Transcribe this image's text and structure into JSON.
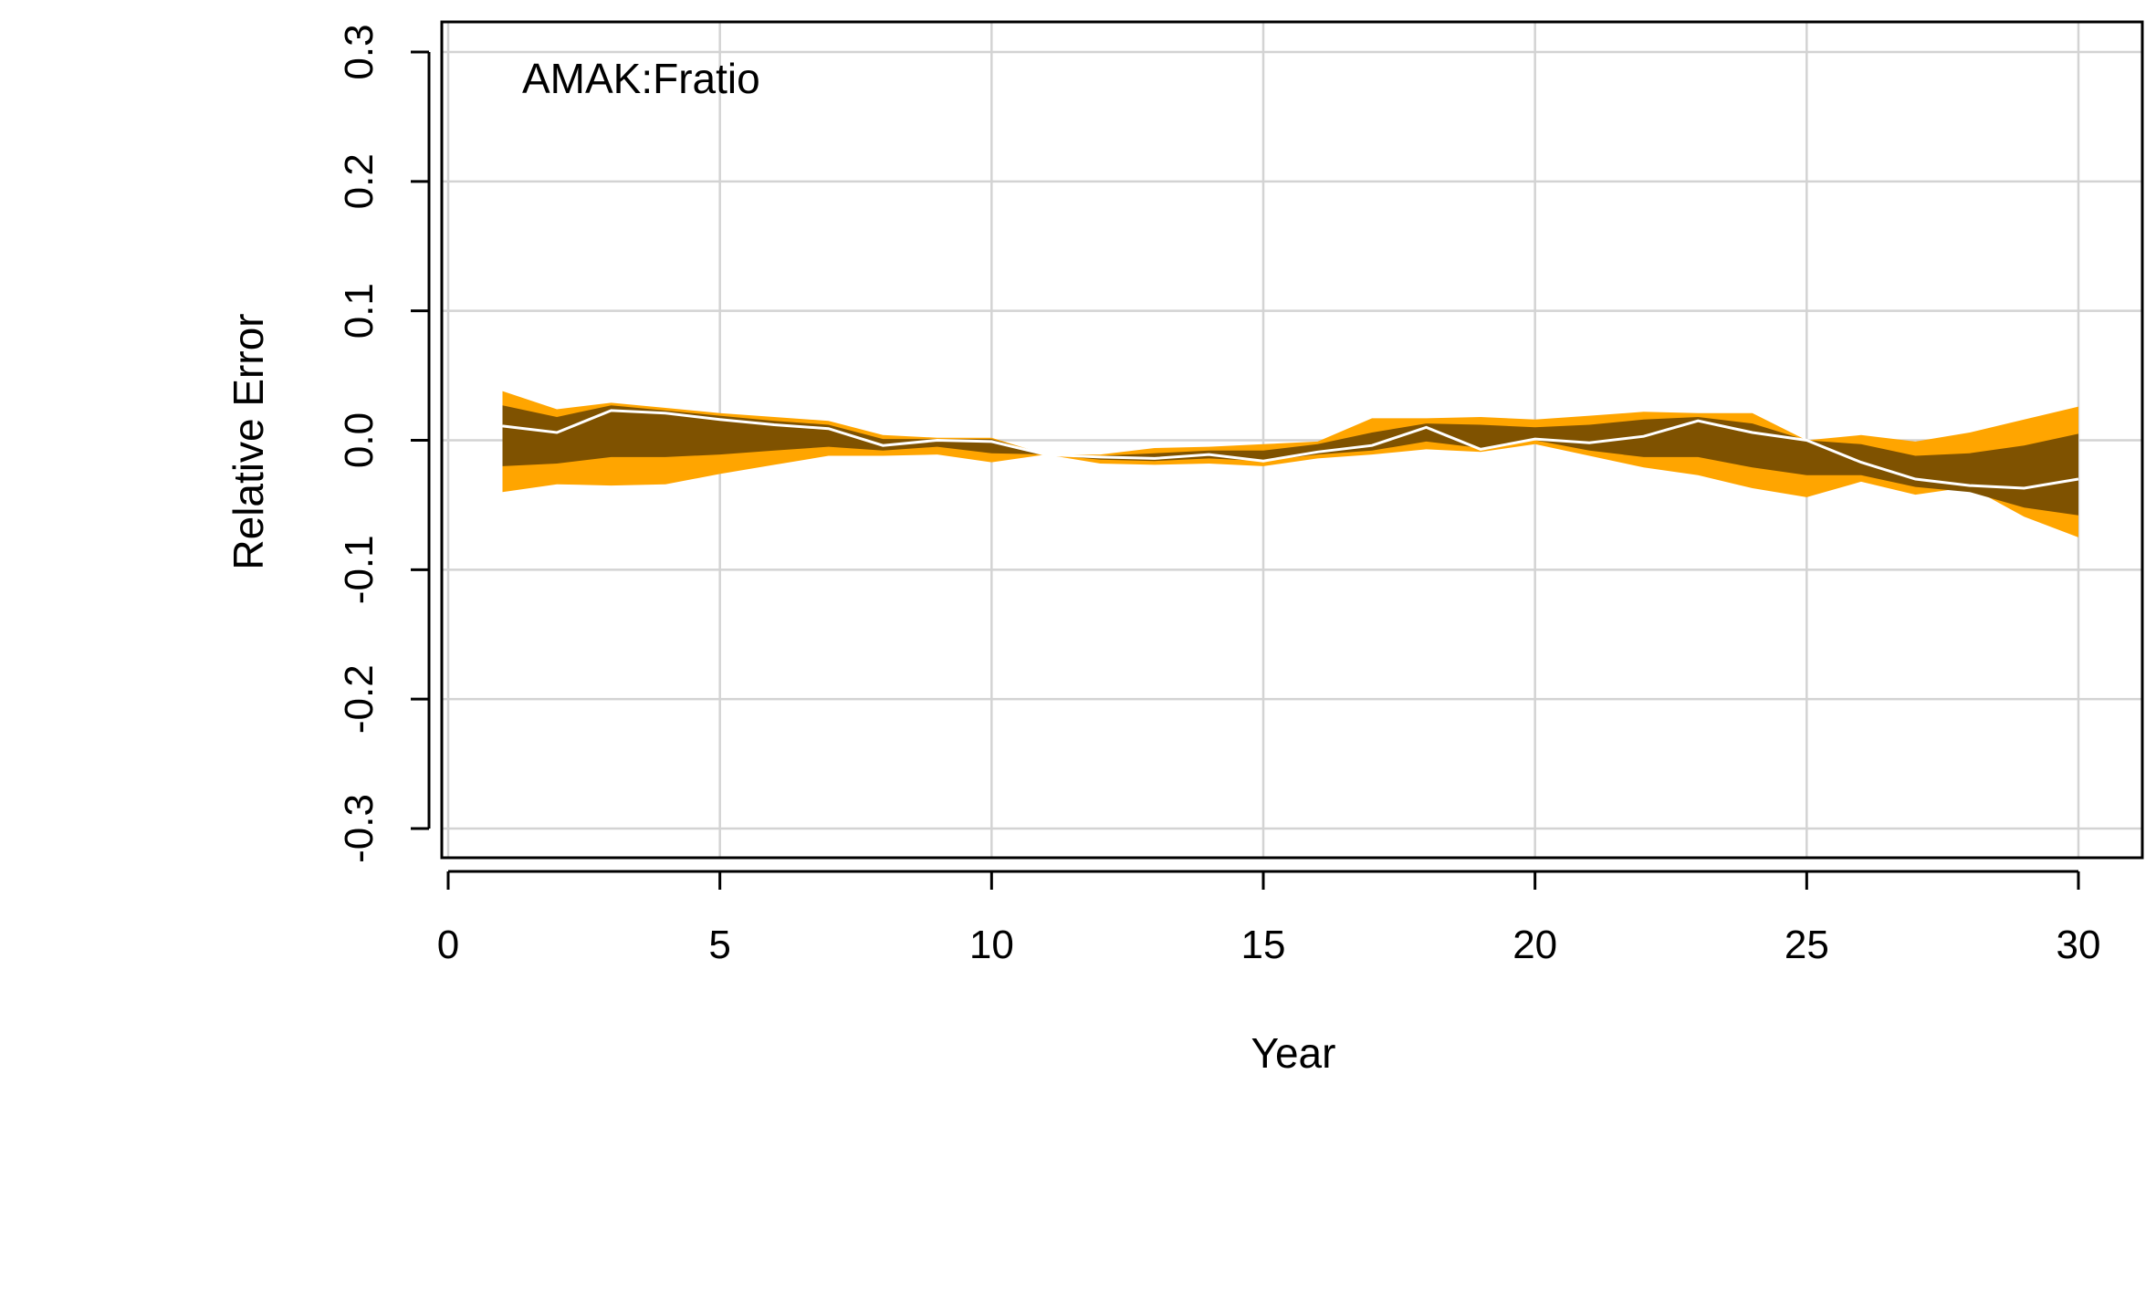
{
  "chart_data": {
    "type": "area",
    "annotation": "AMAK:Fratio",
    "xlabel": "Year",
    "ylabel": "Relative Error",
    "xlim": [
      0,
      30
    ],
    "ylim": [
      -0.3,
      0.3
    ],
    "x_ticks": [
      0,
      5,
      10,
      15,
      20,
      25,
      30
    ],
    "y_ticks": [
      -0.3,
      -0.2,
      -0.1,
      0.0,
      0.1,
      0.2,
      0.3
    ],
    "y_tick_labels": [
      "-0.3",
      "-0.2",
      "-0.1",
      "0.0",
      "0.1",
      "0.2",
      "0.3"
    ],
    "grid": true,
    "x": [
      1,
      2,
      3,
      4,
      5,
      6,
      7,
      8,
      9,
      10,
      11,
      12,
      13,
      14,
      15,
      16,
      17,
      18,
      19,
      20,
      21,
      22,
      23,
      24,
      25,
      26,
      27,
      28,
      29,
      30
    ],
    "bands": {
      "outer_upper": [
        0.038,
        0.024,
        0.029,
        0.025,
        0.021,
        0.018,
        0.015,
        0.004,
        0.002,
        0.002,
        -0.011,
        -0.011,
        -0.006,
        -0.005,
        -0.003,
        -0.001,
        0.017,
        0.017,
        0.018,
        0.016,
        0.019,
        0.022,
        0.021,
        0.021,
        0.0,
        0.004,
        -0.001,
        0.006,
        0.016,
        0.026
      ],
      "inner_upper": [
        0.027,
        0.018,
        0.027,
        0.023,
        0.019,
        0.015,
        0.012,
        0.001,
        0.001,
        0.001,
        -0.011,
        -0.012,
        -0.01,
        -0.008,
        -0.008,
        -0.003,
        0.006,
        0.013,
        0.012,
        0.01,
        0.012,
        0.016,
        0.018,
        0.013,
        0.0,
        -0.003,
        -0.012,
        -0.01,
        -0.004,
        0.005
      ],
      "inner_lower": [
        -0.02,
        -0.018,
        -0.013,
        -0.013,
        -0.011,
        -0.008,
        -0.005,
        -0.008,
        -0.005,
        -0.01,
        -0.011,
        -0.015,
        -0.016,
        -0.014,
        -0.016,
        -0.011,
        -0.008,
        -0.001,
        -0.006,
        0.0,
        -0.008,
        -0.013,
        -0.013,
        -0.021,
        -0.027,
        -0.027,
        -0.036,
        -0.04,
        -0.052,
        -0.058
      ],
      "outer_lower": [
        -0.04,
        -0.034,
        -0.035,
        -0.034,
        -0.026,
        -0.019,
        -0.012,
        -0.012,
        -0.011,
        -0.017,
        -0.011,
        -0.018,
        -0.019,
        -0.018,
        -0.02,
        -0.014,
        -0.011,
        -0.007,
        -0.009,
        -0.003,
        -0.012,
        -0.021,
        -0.027,
        -0.037,
        -0.044,
        -0.032,
        -0.042,
        -0.036,
        -0.059,
        -0.075
      ]
    },
    "median": [
      0.011,
      0.006,
      0.023,
      0.021,
      0.016,
      0.012,
      0.009,
      -0.004,
      0.0,
      -0.001,
      -0.011,
      -0.013,
      -0.014,
      -0.011,
      -0.016,
      -0.009,
      -0.004,
      0.01,
      -0.007,
      0.001,
      -0.002,
      0.003,
      0.015,
      0.006,
      0.0,
      -0.017,
      -0.03,
      -0.035,
      -0.037,
      -0.03
    ],
    "colors": {
      "outer_band": "#FFA500",
      "inner_band": "#7F5200",
      "median_line": "#FFFFFF",
      "grid": "#D3D3D3",
      "frame": "#000000"
    }
  }
}
